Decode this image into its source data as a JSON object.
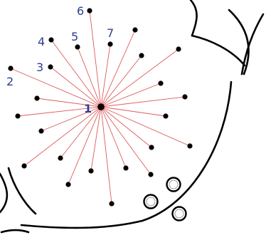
{
  "diagram": {
    "labels": {
      "center": "1",
      "n2": "2",
      "n3": "3",
      "n4": "4",
      "n5": "5",
      "n6": "6",
      "n7": "7"
    },
    "colors": {
      "ray": "#e05a5a",
      "dot": "#000000",
      "label": "#2f3d8f",
      "outline": "#000000",
      "background": "#ffffff"
    }
  }
}
